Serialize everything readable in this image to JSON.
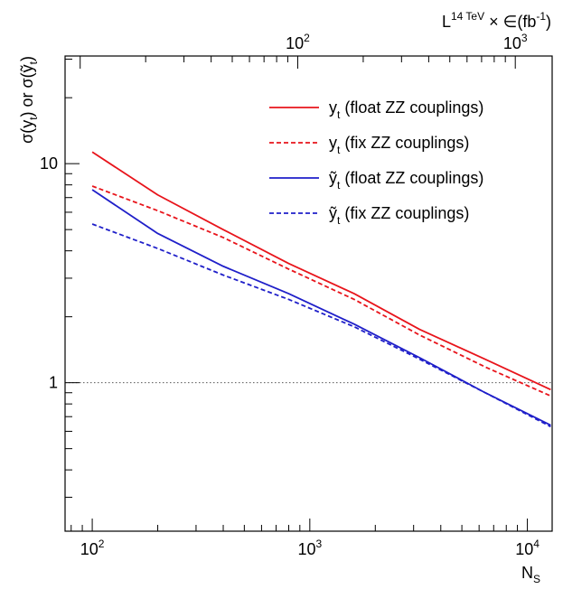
{
  "chart_data": {
    "type": "line",
    "title": "",
    "xlabel": {
      "main": "N",
      "sub": "S"
    },
    "ylabel": {
      "parts": [
        "σ(y",
        "t",
        ") or σ(",
        "ỹ",
        "t",
        ")"
      ]
    },
    "top_axis_label": {
      "l": "L",
      "sup": "14 TeV",
      "mid": " × ∈(fb",
      "sup2": "-1",
      "end": ")"
    },
    "x_scale": "log",
    "y_scale": "log",
    "xlim": [
      75,
      13000
    ],
    "ylim": [
      0.21,
      31
    ],
    "x_ticks": [
      {
        "value": 100,
        "base": "10",
        "exp": "2"
      },
      {
        "value": 1000,
        "base": "10",
        "exp": "3"
      },
      {
        "value": 10000,
        "base": "10",
        "exp": "4"
      }
    ],
    "y_ticks": [
      {
        "value": 1,
        "label": "1"
      },
      {
        "value": 10,
        "label": "10"
      }
    ],
    "top_x_ticks": [
      {
        "value": 100,
        "base": "10",
        "exp": "2"
      },
      {
        "value": 1000,
        "base": "10",
        "exp": "3"
      }
    ],
    "top_axis_note": "top axis is L14TeV×ε; 10^2 aligns with N_S≈880, 10^3 with N_S≈8800",
    "reference_line": {
      "y": 1,
      "style": "dotted",
      "color": "#555555"
    },
    "legend_position": "top-right",
    "series": [
      {
        "name": "y_t (float ZZ couplings)",
        "legend": {
          "sym": "y",
          "sub": "t",
          "text": " (float ZZ couplings)"
        },
        "color": "#e8141b",
        "dash": "solid",
        "x": [
          100,
          200,
          400,
          800,
          1600,
          3200,
          6400,
          12800
        ],
        "y": [
          11.3,
          7.2,
          5.0,
          3.5,
          2.55,
          1.75,
          1.28,
          0.93
        ]
      },
      {
        "name": "y_t (fix ZZ couplings)",
        "legend": {
          "sym": "y",
          "sub": "t",
          "text": " (fix ZZ couplings)"
        },
        "color": "#e8141b",
        "dash": "dashed",
        "x": [
          100,
          200,
          400,
          800,
          1600,
          3200,
          6400,
          12800
        ],
        "y": [
          7.9,
          6.1,
          4.6,
          3.3,
          2.4,
          1.65,
          1.18,
          0.87
        ]
      },
      {
        "name": "ỹ_t (float ZZ couplings)",
        "legend": {
          "sym": "ỹ",
          "sub": "t",
          "text": " (float ZZ couplings)"
        },
        "color": "#1f1fc9",
        "dash": "solid",
        "x": [
          100,
          200,
          400,
          800,
          1600,
          3200,
          6400,
          12800
        ],
        "y": [
          7.6,
          4.8,
          3.4,
          2.55,
          1.85,
          1.3,
          0.9,
          0.64
        ]
      },
      {
        "name": "ỹ_t (fix ZZ couplings)",
        "legend": {
          "sym": "ỹ",
          "sub": "t",
          "text": " (fix ZZ couplings)"
        },
        "color": "#1f1fc9",
        "dash": "dashed",
        "x": [
          100,
          200,
          400,
          800,
          1600,
          3200,
          6400,
          12800
        ],
        "y": [
          5.3,
          4.1,
          3.1,
          2.4,
          1.8,
          1.28,
          0.9,
          0.63
        ]
      }
    ]
  }
}
